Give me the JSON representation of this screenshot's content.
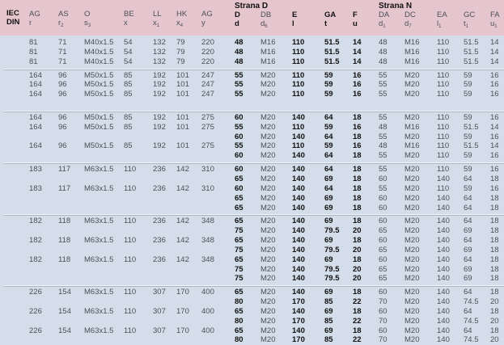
{
  "header": {
    "group_d": "Strana D",
    "group_n": "Strana N",
    "columns": [
      {
        "top": "IEC",
        "bottom": "DIN",
        "sub": "",
        "bold": true
      },
      {
        "top": "AG",
        "bottom": "r",
        "sub": "",
        "bold": false
      },
      {
        "top": "AS",
        "bottom": "r",
        "sub": "2",
        "bold": false
      },
      {
        "top": "O",
        "bottom": "s",
        "sub": "3",
        "bold": false
      },
      {
        "top": "BE",
        "bottom": "x",
        "sub": "",
        "bold": false
      },
      {
        "top": "LL",
        "bottom": "x",
        "sub": "1",
        "bold": false
      },
      {
        "top": "HK",
        "bottom": "x",
        "sub": "4",
        "bold": false
      },
      {
        "top": "AG",
        "bottom": "y",
        "sub": "",
        "bold": false
      },
      {
        "top": "D",
        "bottom": "d",
        "sub": "",
        "bold": true
      },
      {
        "top": "DB",
        "bottom": "d",
        "sub": "6",
        "bold": false
      },
      {
        "top": "E",
        "bottom": "l",
        "sub": "",
        "bold": true
      },
      {
        "top": "GA",
        "bottom": "t",
        "sub": "",
        "bold": true
      },
      {
        "top": "F",
        "bottom": "u",
        "sub": "",
        "bold": true
      },
      {
        "top": "DA",
        "bottom": "d",
        "sub": "1",
        "bold": false
      },
      {
        "top": "DC",
        "bottom": "d",
        "sub": "7",
        "bold": false
      },
      {
        "top": "EA",
        "bottom": "l",
        "sub": "1",
        "bold": false
      },
      {
        "top": "GC",
        "bottom": "t",
        "sub": "1",
        "bold": false
      },
      {
        "top": "FA",
        "bottom": "u",
        "sub": "1",
        "bold": false
      }
    ]
  },
  "groups": [
    {
      "rows": [
        [
          "",
          "81",
          "71",
          "M40x1.5",
          "54",
          "132",
          "79",
          "220",
          "48",
          "M16",
          "110",
          "51.5",
          "14",
          "48",
          "M16",
          "110",
          "51.5",
          "14"
        ],
        [
          "",
          "81",
          "71",
          "M40x1.5",
          "54",
          "132",
          "79",
          "220",
          "48",
          "M16",
          "110",
          "51.5",
          "14",
          "48",
          "M16",
          "110",
          "51.5",
          "14"
        ],
        [
          "",
          "81",
          "71",
          "M40x1.5",
          "54",
          "132",
          "79",
          "220",
          "48",
          "M16",
          "110",
          "51.5",
          "14",
          "48",
          "M16",
          "110",
          "51.5",
          "14"
        ]
      ]
    },
    {
      "rows": [
        [
          "",
          "164",
          "96",
          "M50x1.5",
          "85",
          "192",
          "101",
          "247",
          "55",
          "M20",
          "110",
          "59",
          "16",
          "55",
          "M20",
          "110",
          "59",
          "16"
        ],
        [
          "",
          "164",
          "96",
          "M50x1.5",
          "85",
          "192",
          "101",
          "247",
          "55",
          "M20",
          "110",
          "59",
          "16",
          "55",
          "M20",
          "110",
          "59",
          "16"
        ],
        [
          "",
          "164",
          "96",
          "M50x1.5",
          "85",
          "192",
          "101",
          "247",
          "55",
          "M20",
          "110",
          "59",
          "16",
          "55",
          "M20",
          "110",
          "59",
          "16"
        ],
        [
          "",
          "",
          "",
          "",
          "",
          "",
          "",
          "",
          "",
          "",
          "",
          "",
          "",
          "",
          "",
          "",
          "",
          ""
        ]
      ]
    },
    {
      "rows": [
        [
          "",
          "164",
          "96",
          "M50x1.5",
          "85",
          "192",
          "101",
          "275",
          "60",
          "M20",
          "140",
          "64",
          "18",
          "55",
          "M20",
          "110",
          "59",
          "16"
        ],
        [
          "",
          "164",
          "96",
          "M50x1.5",
          "85",
          "192",
          "101",
          "275",
          "55",
          "M20",
          "110",
          "59",
          "16",
          "48",
          "M16",
          "110",
          "51.5",
          "14"
        ],
        [
          "",
          "",
          "",
          "",
          "",
          "",
          "",
          "",
          "60",
          "M20",
          "140",
          "64",
          "18",
          "55",
          "M20",
          "110",
          "59",
          "16"
        ],
        [
          "",
          "164",
          "96",
          "M50x1.5",
          "85",
          "192",
          "101",
          "275",
          "55",
          "M20",
          "110",
          "59",
          "16",
          "48",
          "M16",
          "110",
          "51.5",
          "14"
        ],
        [
          "",
          "",
          "",
          "",
          "",
          "",
          "",
          "",
          "60",
          "M20",
          "140",
          "64",
          "18",
          "55",
          "M20",
          "110",
          "59",
          "16"
        ]
      ]
    },
    {
      "rows": [
        [
          "",
          "183",
          "117",
          "M63x1.5",
          "110",
          "236",
          "142",
          "310",
          "60",
          "M20",
          "140",
          "64",
          "18",
          "55",
          "M20",
          "110",
          "59",
          "16"
        ],
        [
          "",
          "",
          "",
          "",
          "",
          "",
          "",
          "",
          "65",
          "M20",
          "140",
          "69",
          "18",
          "60",
          "M20",
          "140",
          "64",
          "18"
        ],
        [
          "",
          "183",
          "117",
          "M63x1.5",
          "110",
          "236",
          "142",
          "310",
          "60",
          "M20",
          "140",
          "64",
          "18",
          "55",
          "M20",
          "110",
          "59",
          "16"
        ],
        [
          "",
          "",
          "",
          "",
          "",
          "",
          "",
          "",
          "65",
          "M20",
          "140",
          "69",
          "18",
          "60",
          "M20",
          "140",
          "64",
          "18"
        ],
        [
          "",
          "",
          "",
          "",
          "",
          "",
          "",
          "",
          "65",
          "M20",
          "140",
          "69",
          "18",
          "60",
          "M20",
          "140",
          "64",
          "18"
        ]
      ]
    },
    {
      "rows": [
        [
          "",
          "182",
          "118",
          "M63x1.5",
          "110",
          "236",
          "142",
          "348",
          "65",
          "M20",
          "140",
          "69",
          "18",
          "60",
          "M20",
          "140",
          "64",
          "18"
        ],
        [
          "",
          "",
          "",
          "",
          "",
          "",
          "",
          "",
          "75",
          "M20",
          "140",
          "79.5",
          "20",
          "65",
          "M20",
          "140",
          "69",
          "18"
        ],
        [
          "",
          "182",
          "118",
          "M63x1.5",
          "110",
          "236",
          "142",
          "348",
          "65",
          "M20",
          "140",
          "69",
          "18",
          "60",
          "M20",
          "140",
          "64",
          "18"
        ],
        [
          "",
          "",
          "",
          "",
          "",
          "",
          "",
          "",
          "75",
          "M20",
          "140",
          "79.5",
          "20",
          "65",
          "M20",
          "140",
          "69",
          "18"
        ],
        [
          "",
          "182",
          "118",
          "M63x1.5",
          "110",
          "236",
          "142",
          "348",
          "65",
          "M20",
          "140",
          "69",
          "18",
          "60",
          "M20",
          "140",
          "64",
          "18"
        ],
        [
          "",
          "",
          "",
          "",
          "",
          "",
          "",
          "",
          "75",
          "M20",
          "140",
          "79.5",
          "20",
          "65",
          "M20",
          "140",
          "69",
          "18"
        ],
        [
          "",
          "",
          "",
          "",
          "",
          "",
          "",
          "",
          "75",
          "M20",
          "140",
          "79.5",
          "20",
          "65",
          "M20",
          "140",
          "69",
          "18"
        ]
      ]
    },
    {
      "rows": [
        [
          "",
          "226",
          "154",
          "M63x1.5",
          "110",
          "307",
          "170",
          "400",
          "65",
          "M20",
          "140",
          "69",
          "18",
          "60",
          "M20",
          "140",
          "64",
          "18"
        ],
        [
          "",
          "",
          "",
          "",
          "",
          "",
          "",
          "",
          "80",
          "M20",
          "170",
          "85",
          "22",
          "70",
          "M20",
          "140",
          "74.5",
          "20"
        ],
        [
          "",
          "226",
          "154",
          "M63x1.5",
          "110",
          "307",
          "170",
          "400",
          "65",
          "M20",
          "140",
          "69",
          "18",
          "60",
          "M20",
          "140",
          "64",
          "18"
        ],
        [
          "",
          "",
          "",
          "",
          "",
          "",
          "",
          "",
          "80",
          "M20",
          "170",
          "85",
          "22",
          "70",
          "M20",
          "140",
          "74.5",
          "20"
        ],
        [
          "",
          "226",
          "154",
          "M63x1.5",
          "110",
          "307",
          "170",
          "400",
          "65",
          "M20",
          "140",
          "69",
          "18",
          "60",
          "M20",
          "140",
          "64",
          "18"
        ],
        [
          "",
          "",
          "",
          "",
          "",
          "",
          "",
          "",
          "80",
          "M20",
          "170",
          "85",
          "22",
          "70",
          "M20",
          "140",
          "74.5",
          "20"
        ]
      ]
    }
  ]
}
